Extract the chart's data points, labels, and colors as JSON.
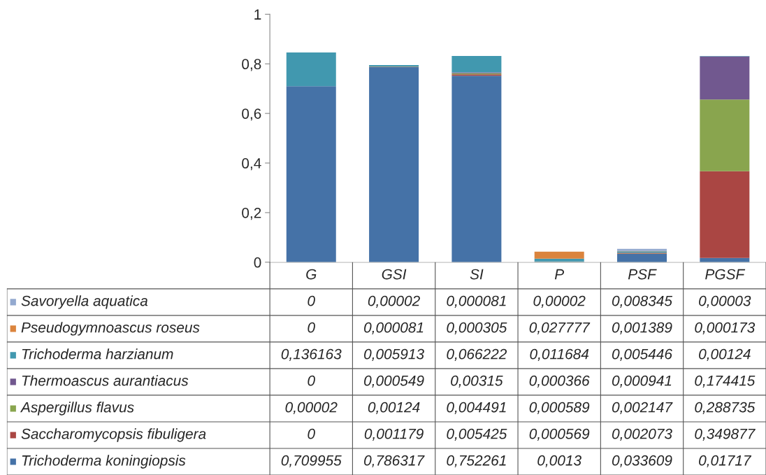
{
  "chart_data": {
    "type": "bar",
    "stacked": true,
    "categories": [
      "G",
      "GSI",
      "SI",
      "P",
      "PSF",
      "PGSF"
    ],
    "ylim": [
      0,
      1
    ],
    "yticks": [
      0,
      {
        "value": 0.2,
        "label": "0,2"
      },
      {
        "value": 0.4,
        "label": "0,4"
      },
      {
        "value": 0.6,
        "label": "0,6"
      },
      {
        "value": 0.8,
        "label": "0,8"
      },
      1
    ],
    "grid": false,
    "legend": "bottom left",
    "series": [
      {
        "name": "Trichoderma koningiopsis",
        "color": "#4572a7",
        "values": [
          0.709955,
          0.786317,
          0.752261,
          0.0013,
          0.033609,
          0.01717
        ],
        "value_labels": [
          "0,709955",
          "0,786317",
          "0,752261",
          "0,0013",
          "0,033609",
          "0,01717"
        ]
      },
      {
        "name": "Saccharomycopsis fibuligera",
        "color": "#aa4643",
        "values": [
          0,
          0.001179,
          0.005425,
          0.000569,
          0.002073,
          0.349877
        ],
        "value_labels": [
          "0",
          "0,001179",
          "0,005425",
          "0,000569",
          "0,002073",
          "0,349877"
        ]
      },
      {
        "name": "Aspergillus flavus",
        "color": "#89a54e",
        "values": [
          2e-05,
          0.00124,
          0.004491,
          0.000589,
          0.002147,
          0.288735
        ],
        "value_labels": [
          "0,00002",
          "0,00124",
          "0,004491",
          "0,000589",
          "0,002147",
          "0,288735"
        ]
      },
      {
        "name": "Thermoascus aurantiacus",
        "color": "#71588f",
        "values": [
          0,
          0.000549,
          0.00315,
          0.000366,
          0.000941,
          0.174415
        ],
        "value_labels": [
          "0",
          "0,000549",
          "0,00315",
          "0,000366",
          "0,000941",
          "0,174415"
        ]
      },
      {
        "name": "Trichoderma harzianum",
        "color": "#4198af",
        "values": [
          0.136163,
          0.005913,
          0.066222,
          0.011684,
          0.005446,
          0.00124
        ],
        "value_labels": [
          "0,136163",
          "0,005913",
          "0,066222",
          "0,011684",
          "0,005446",
          "0,00124"
        ]
      },
      {
        "name": "Pseudogymnoascus roseus",
        "color": "#db843d",
        "values": [
          0,
          8.1e-05,
          0.000305,
          0.027777,
          0.001389,
          0.000173
        ],
        "value_labels": [
          "0",
          "0,000081",
          "0,000305",
          "0,027777",
          "0,001389",
          "0,000173"
        ]
      },
      {
        "name": "Savoryella aquatica",
        "color": "#93a9cf",
        "values": [
          0,
          2e-05,
          8.1e-05,
          2e-05,
          0.008345,
          3e-05
        ],
        "value_labels": [
          "0",
          "0,00002",
          "0,000081",
          "0,00002",
          "0,008345",
          "0,00003"
        ]
      }
    ]
  }
}
